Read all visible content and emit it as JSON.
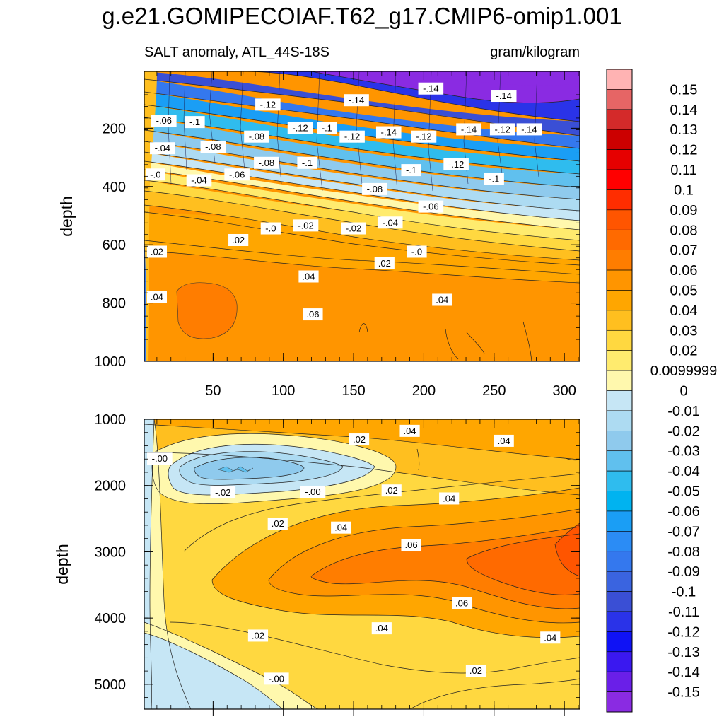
{
  "title": "g.e21.GOMIPECOIAF.T62_g17.CMIP6-omip1.001",
  "subtitle_left": "SALT anomaly, ATL_44S-18S",
  "subtitle_right": "gram/kilogram",
  "chart_data": [
    {
      "type": "contour",
      "panel": "upper",
      "ylabel": "depth",
      "xlim": [
        1,
        311
      ],
      "ylim": [
        1000,
        5
      ],
      "y_reversed": true,
      "xticks": [
        50,
        100,
        150,
        200,
        250,
        300
      ],
      "yticks": [
        200,
        400,
        600,
        800,
        1000
      ],
      "bands": [
        {
          "depth_top": 5,
          "depth_bottom": 180,
          "value": -0.15
        },
        {
          "depth_top": 180,
          "depth_bottom": 260,
          "value": -0.13
        },
        {
          "depth_top": 260,
          "depth_bottom": 330,
          "value": -0.11
        },
        {
          "depth_top": 330,
          "depth_bottom": 390,
          "value": -0.09
        },
        {
          "depth_top": 390,
          "depth_bottom": 440,
          "value": -0.07
        },
        {
          "depth_top": 440,
          "depth_bottom": 490,
          "value": -0.05
        },
        {
          "depth_top": 490,
          "depth_bottom": 540,
          "value": -0.03
        },
        {
          "depth_top": 540,
          "depth_bottom": 580,
          "value": -0.01
        },
        {
          "depth_top": 580,
          "depth_bottom": 620,
          "value": 0.01
        },
        {
          "depth_top": 620,
          "depth_bottom": 680,
          "value": 0.03
        },
        {
          "depth_top": 680,
          "depth_bottom": 760,
          "value": 0.045
        },
        {
          "depth_top": 760,
          "depth_bottom": 1000,
          "value": 0.055
        }
      ],
      "contour_labels": [
        {
          "x": 89,
          "depth": 120,
          "text": "-.12"
        },
        {
          "x": 152,
          "depth": 105,
          "text": "-.14"
        },
        {
          "x": 205,
          "depth": 65,
          "text": "-.14"
        },
        {
          "x": 257,
          "depth": 90,
          "text": "-.14"
        },
        {
          "x": 15,
          "depth": 175,
          "text": "-.06"
        },
        {
          "x": 37,
          "depth": 180,
          "text": "-.1"
        },
        {
          "x": 81,
          "depth": 230,
          "text": "-.08"
        },
        {
          "x": 112,
          "depth": 200,
          "text": "-.12"
        },
        {
          "x": 131,
          "depth": 200,
          "text": "-.1"
        },
        {
          "x": 149,
          "depth": 230,
          "text": "-.12"
        },
        {
          "x": 175,
          "depth": 215,
          "text": "-.14"
        },
        {
          "x": 200,
          "depth": 230,
          "text": "-.12"
        },
        {
          "x": 232,
          "depth": 205,
          "text": "-.14"
        },
        {
          "x": 256,
          "depth": 205,
          "text": "-.12"
        },
        {
          "x": 275,
          "depth": 205,
          "text": "-.14"
        },
        {
          "x": 14,
          "depth": 270,
          "text": "-.04"
        },
        {
          "x": 50,
          "depth": 265,
          "text": "-.08"
        },
        {
          "x": 88,
          "depth": 320,
          "text": "-.08"
        },
        {
          "x": 117,
          "depth": 320,
          "text": "-.1"
        },
        {
          "x": 191,
          "depth": 345,
          "text": "-.1"
        },
        {
          "x": 223,
          "depth": 325,
          "text": "-.12"
        },
        {
          "x": 250,
          "depth": 375,
          "text": "-.1"
        },
        {
          "x": 9,
          "depth": 360,
          "text": "-.0"
        },
        {
          "x": 40,
          "depth": 380,
          "text": "-.04"
        },
        {
          "x": 67,
          "depth": 360,
          "text": "-.06"
        },
        {
          "x": 165,
          "depth": 410,
          "text": "-.08"
        },
        {
          "x": 205,
          "depth": 470,
          "text": "-.06"
        },
        {
          "x": 91,
          "depth": 545,
          "text": "-.0"
        },
        {
          "x": 116,
          "depth": 535,
          "text": "-.02"
        },
        {
          "x": 150,
          "depth": 545,
          "text": "-.02"
        },
        {
          "x": 176,
          "depth": 525,
          "text": "-.04"
        },
        {
          "x": 68,
          "depth": 585,
          "text": ".02"
        },
        {
          "x": 195,
          "depth": 625,
          "text": "-.0"
        },
        {
          "x": 10,
          "depth": 625,
          "text": ".02"
        },
        {
          "x": 172,
          "depth": 665,
          "text": ".02"
        },
        {
          "x": 118,
          "depth": 710,
          "text": ".04"
        },
        {
          "x": 10,
          "depth": 780,
          "text": ".04"
        },
        {
          "x": 213,
          "depth": 790,
          "text": ".04"
        },
        {
          "x": 121,
          "depth": 840,
          "text": ".06"
        }
      ]
    },
    {
      "type": "contour",
      "panel": "lower",
      "ylabel": "depth",
      "xlim": [
        1,
        311
      ],
      "ylim": [
        5375,
        1000
      ],
      "y_reversed": true,
      "yticks": [
        1000,
        2000,
        3000,
        4000,
        5000
      ],
      "contour_labels": [
        {
          "x": 190,
          "depth": 1180,
          "text": ".04"
        },
        {
          "x": 154,
          "depth": 1310,
          "text": ".02"
        },
        {
          "x": 257,
          "depth": 1330,
          "text": ".04"
        },
        {
          "x": 12,
          "depth": 1600,
          "text": "-.00"
        },
        {
          "x": 57,
          "depth": 2110,
          "text": "-.02"
        },
        {
          "x": 121,
          "depth": 2100,
          "text": "-.00"
        },
        {
          "x": 177,
          "depth": 2080,
          "text": ".02"
        },
        {
          "x": 218,
          "depth": 2200,
          "text": ".04"
        },
        {
          "x": 96,
          "depth": 2580,
          "text": ".02"
        },
        {
          "x": 141,
          "depth": 2640,
          "text": ".04"
        },
        {
          "x": 191,
          "depth": 2900,
          "text": ".06"
        },
        {
          "x": 227,
          "depth": 3780,
          "text": ".06"
        },
        {
          "x": 170,
          "depth": 4160,
          "text": ".04"
        },
        {
          "x": 82,
          "depth": 4270,
          "text": ".02"
        },
        {
          "x": 290,
          "depth": 4300,
          "text": ".04"
        },
        {
          "x": 237,
          "depth": 4800,
          "text": ".02"
        },
        {
          "x": 95,
          "depth": 4920,
          "text": "-.00"
        }
      ]
    }
  ],
  "colorbar": {
    "levels": [
      {
        "label": "0.15",
        "color": "#ffb3b3"
      },
      {
        "label": "0.14",
        "color": "#e66565"
      },
      {
        "label": "0.13",
        "color": "#d42a2a"
      },
      {
        "label": "0.12",
        "color": "#cc0000"
      },
      {
        "label": "0.11",
        "color": "#e60000"
      },
      {
        "label": "0.1",
        "color": "#ff0000"
      },
      {
        "label": "0.09",
        "color": "#ff2d00"
      },
      {
        "label": "0.08",
        "color": "#ff5500"
      },
      {
        "label": "0.07",
        "color": "#ff6a00"
      },
      {
        "label": "0.06",
        "color": "#ff7d00"
      },
      {
        "label": "0.05",
        "color": "#ff9500"
      },
      {
        "label": "0.04",
        "color": "#ffa600"
      },
      {
        "label": "0.03",
        "color": "#ffbf1f"
      },
      {
        "label": "0.02",
        "color": "#ffd840"
      },
      {
        "label": "0.0099999",
        "color": "#ffeb6e"
      },
      {
        "label": "0",
        "color": "#fff8ad"
      },
      {
        "label": "-0.01",
        "color": "#c6e6f5"
      },
      {
        "label": "-0.02",
        "color": "#addbf2"
      },
      {
        "label": "-0.03",
        "color": "#8fcaed"
      },
      {
        "label": "-0.04",
        "color": "#60c0ee"
      },
      {
        "label": "-0.05",
        "color": "#2fbcee"
      },
      {
        "label": "-0.06",
        "color": "#00b3f0"
      },
      {
        "label": "-0.07",
        "color": "#1a9ef5"
      },
      {
        "label": "-0.08",
        "color": "#2b8cf5"
      },
      {
        "label": "-0.09",
        "color": "#3478ee"
      },
      {
        "label": "-0.1",
        "color": "#3a64e0"
      },
      {
        "label": "-0.11",
        "color": "#3a4fd5"
      },
      {
        "label": "-0.12",
        "color": "#2a33e8"
      },
      {
        "label": "-0.13",
        "color": "#0f12f5"
      },
      {
        "label": "-0.14",
        "color": "#3a18f0"
      },
      {
        "label": "-0.15",
        "color": "#6a1fe8"
      },
      {
        "label": "",
        "color": "#8a2be2"
      }
    ]
  }
}
